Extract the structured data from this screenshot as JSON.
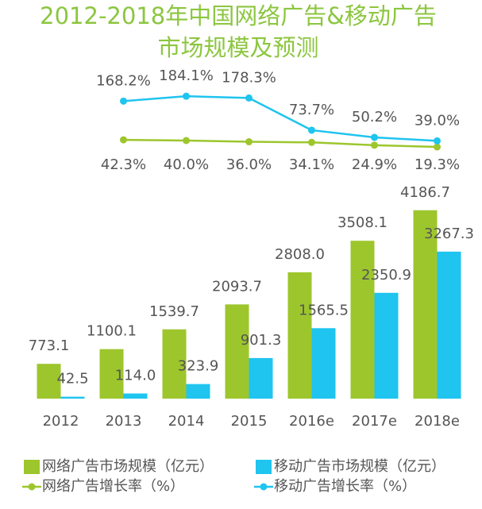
{
  "chart_data": {
    "type": "bar",
    "title": [
      "2012-2018年中国网络广告&移动广告",
      "市场规模及预测"
    ],
    "categories": [
      "2012",
      "2013",
      "2014",
      "2015",
      "2016e",
      "2017e",
      "2018e"
    ],
    "ylim": [
      0,
      4500
    ],
    "y2lim": [
      0,
      200
    ],
    "series": [
      {
        "name": "网络广告市场规模（亿元）",
        "type": "bar",
        "color": "#9dc62d",
        "values": [
          773.1,
          1100.1,
          1539.7,
          2093.7,
          2808.0,
          3508.1,
          4186.7
        ],
        "value_labels": [
          "773.1",
          "1100.1",
          "1539.7",
          "2093.7",
          "2808.0",
          "3508.1",
          "4186.7"
        ]
      },
      {
        "name": "移动广告市场规模（亿元）",
        "type": "bar",
        "color": "#1fc4ef",
        "values": [
          42.5,
          114.0,
          323.9,
          901.3,
          1565.5,
          2350.9,
          3267.3
        ],
        "value_labels": [
          "42.5",
          "114.0",
          "323.9",
          "901.3",
          "1565.5",
          "2350.9",
          "3267.3"
        ]
      },
      {
        "name": "网络广告增长率（%）",
        "type": "line",
        "axis": "y2",
        "color": "#9dc62d",
        "values": [
          null,
          42.3,
          40.0,
          36.0,
          34.1,
          24.9,
          19.3
        ],
        "value_labels": [
          null,
          "42.3%",
          "40.0%",
          "36.0%",
          "34.1%",
          "24.9%",
          "19.3%"
        ]
      },
      {
        "name": "移动广告增长率（%）",
        "type": "line",
        "axis": "y2",
        "color": "#1fc4ef",
        "values": [
          null,
          168.2,
          184.1,
          178.3,
          73.7,
          50.2,
          39.0
        ],
        "value_labels": [
          null,
          "168.2%",
          "184.1%",
          "178.3%",
          "73.7%",
          "50.2%",
          "39.0%"
        ]
      }
    ]
  }
}
